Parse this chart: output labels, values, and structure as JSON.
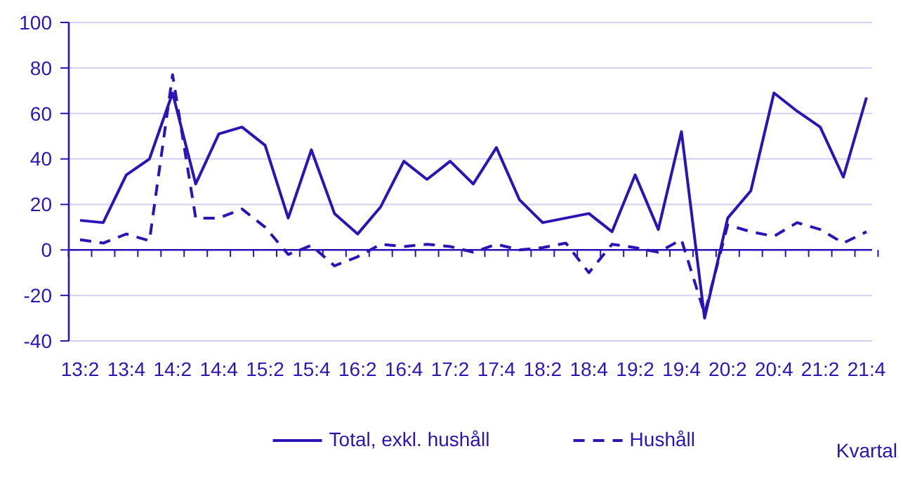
{
  "chart_data": {
    "type": "line",
    "xlabel": "Kvartal",
    "categories": [
      "13:2",
      null,
      "13:4",
      null,
      "14:2",
      null,
      "14:4",
      null,
      "15:2",
      null,
      "15:4",
      null,
      "16:2",
      null,
      "16:4",
      null,
      "17:2",
      null,
      "17:4",
      null,
      "18:2",
      null,
      "18:4",
      null,
      "19:2",
      null,
      "19:4",
      null,
      "20:2",
      null,
      "20:4",
      null,
      "21:2",
      null,
      "21:4"
    ],
    "series": [
      {
        "name": "Total, exkl. hushåll",
        "color": "#2a14b8",
        "line_style": "solid",
        "values": [
          13,
          12,
          33,
          40,
          69,
          29,
          51,
          54,
          46,
          14,
          44,
          16,
          7,
          19,
          39,
          31,
          39,
          29,
          45,
          22,
          12,
          14,
          16,
          8,
          33,
          9,
          52,
          -30,
          14,
          26,
          69,
          61,
          54,
          32,
          67
        ]
      },
      {
        "name": "Hushåll",
        "color": "#2a14b8",
        "line_style": "dashed",
        "values": [
          4.5,
          3,
          7,
          4,
          77,
          14,
          14,
          18,
          10,
          -2,
          2,
          -7,
          -3,
          2.5,
          1.5,
          2.5,
          1.5,
          -1,
          2.5,
          0,
          1,
          3,
          -10,
          2.5,
          1,
          -1,
          4.5,
          -28,
          11,
          8,
          6,
          12,
          9,
          3,
          8
        ]
      }
    ],
    "ylim": [
      -40,
      100
    ],
    "yticks": [
      -40,
      -20,
      0,
      20,
      40,
      60,
      80,
      100
    ],
    "ref_lines": [
      {
        "axis": "y",
        "value": 0,
        "color": "#2a14b8"
      }
    ],
    "grid": "y",
    "legend": "bottom",
    "marker": "none"
  }
}
